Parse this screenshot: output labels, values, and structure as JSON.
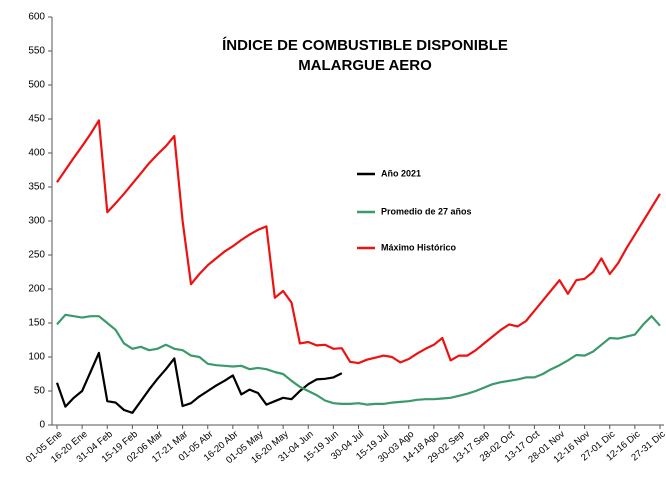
{
  "chart_data": {
    "type": "line",
    "title": [
      "ÍNDICE DE COMBUSTIBLE DISPONIBLE",
      "MALARGUE AERO"
    ],
    "categories": [
      "01-05 Ene",
      null,
      null,
      "16-20 Ene",
      null,
      null,
      "31-04 Feb",
      null,
      null,
      "15-19 Feb",
      null,
      null,
      "02-06 Mar",
      null,
      null,
      "17-21 Mar",
      null,
      null,
      "01-05 Abr",
      null,
      null,
      "16-20 Abr",
      null,
      null,
      "01-05 May",
      null,
      null,
      "16-20 May",
      null,
      null,
      "31-04 Jun",
      null,
      null,
      "15-19 Jun",
      null,
      null,
      "30-04 Jul",
      null,
      null,
      "15-19 Jul",
      null,
      null,
      "30-03 Ago",
      null,
      null,
      "14-18 Ago",
      null,
      null,
      "29-02 Sep",
      null,
      null,
      "13-17 Sep",
      null,
      null,
      "28-02 Oct",
      null,
      null,
      "13-17 Oct",
      null,
      null,
      "28-01 Nov",
      null,
      null,
      "12-16 Nov",
      null,
      null,
      "27-01 Dic",
      null,
      null,
      "12-16 Dic",
      null,
      null,
      "27-31 Dic"
    ],
    "series": [
      {
        "name": "Año 2021",
        "color": "#000000",
        "values": [
          62,
          27,
          40,
          50,
          78,
          106,
          35,
          33,
          22,
          18,
          35,
          52,
          68,
          82,
          98,
          28,
          32,
          42,
          50,
          58,
          65,
          73,
          45,
          52,
          47,
          30,
          35,
          40,
          38,
          50,
          60,
          67,
          68,
          70,
          76,
          null,
          null,
          null,
          null,
          null,
          null,
          null,
          null,
          null,
          null,
          null,
          null,
          null,
          null,
          null,
          null,
          null,
          null,
          null,
          null,
          null,
          null,
          null,
          null,
          null,
          null,
          null,
          null,
          null,
          null,
          null,
          null,
          null,
          null,
          null,
          null,
          null,
          null
        ]
      },
      {
        "name": "Promedio de 27 años",
        "color": "#3a9a6a",
        "values": [
          148,
          162,
          160,
          158,
          160,
          160,
          150,
          140,
          120,
          112,
          115,
          110,
          112,
          118,
          112,
          110,
          102,
          100,
          90,
          88,
          87,
          86,
          87,
          82,
          84,
          82,
          78,
          75,
          65,
          56,
          50,
          44,
          36,
          32,
          31,
          31,
          32,
          30,
          31,
          31,
          33,
          34,
          35,
          37,
          38,
          38,
          39,
          40,
          43,
          46,
          50,
          55,
          60,
          63,
          65,
          67,
          70,
          70,
          75,
          82,
          88,
          95,
          103,
          102,
          108,
          118,
          128,
          127,
          130,
          133,
          148,
          160,
          146
        ]
      },
      {
        "name": "Máximo Histórico",
        "color": "#ee1111",
        "values": [
          357,
          375,
          393,
          410,
          428,
          448,
          313,
          326,
          340,
          355,
          370,
          385,
          398,
          410,
          425,
          300,
          207,
          222,
          235,
          245,
          255,
          263,
          272,
          280,
          287,
          292,
          187,
          197,
          180,
          120,
          122,
          117,
          118,
          112,
          113,
          93,
          91,
          96,
          99,
          102,
          100,
          92,
          97,
          105,
          112,
          118,
          128,
          95,
          102,
          102,
          110,
          120,
          130,
          140,
          148,
          145,
          153,
          168,
          183,
          198,
          213,
          193,
          213,
          215,
          225,
          245,
          222,
          238,
          260,
          280,
          300,
          320,
          340
        ]
      }
    ],
    "ylim": [
      0,
      600
    ],
    "yticks": [
      0,
      50,
      100,
      150,
      200,
      250,
      300,
      350,
      400,
      450,
      500,
      550,
      600
    ]
  }
}
